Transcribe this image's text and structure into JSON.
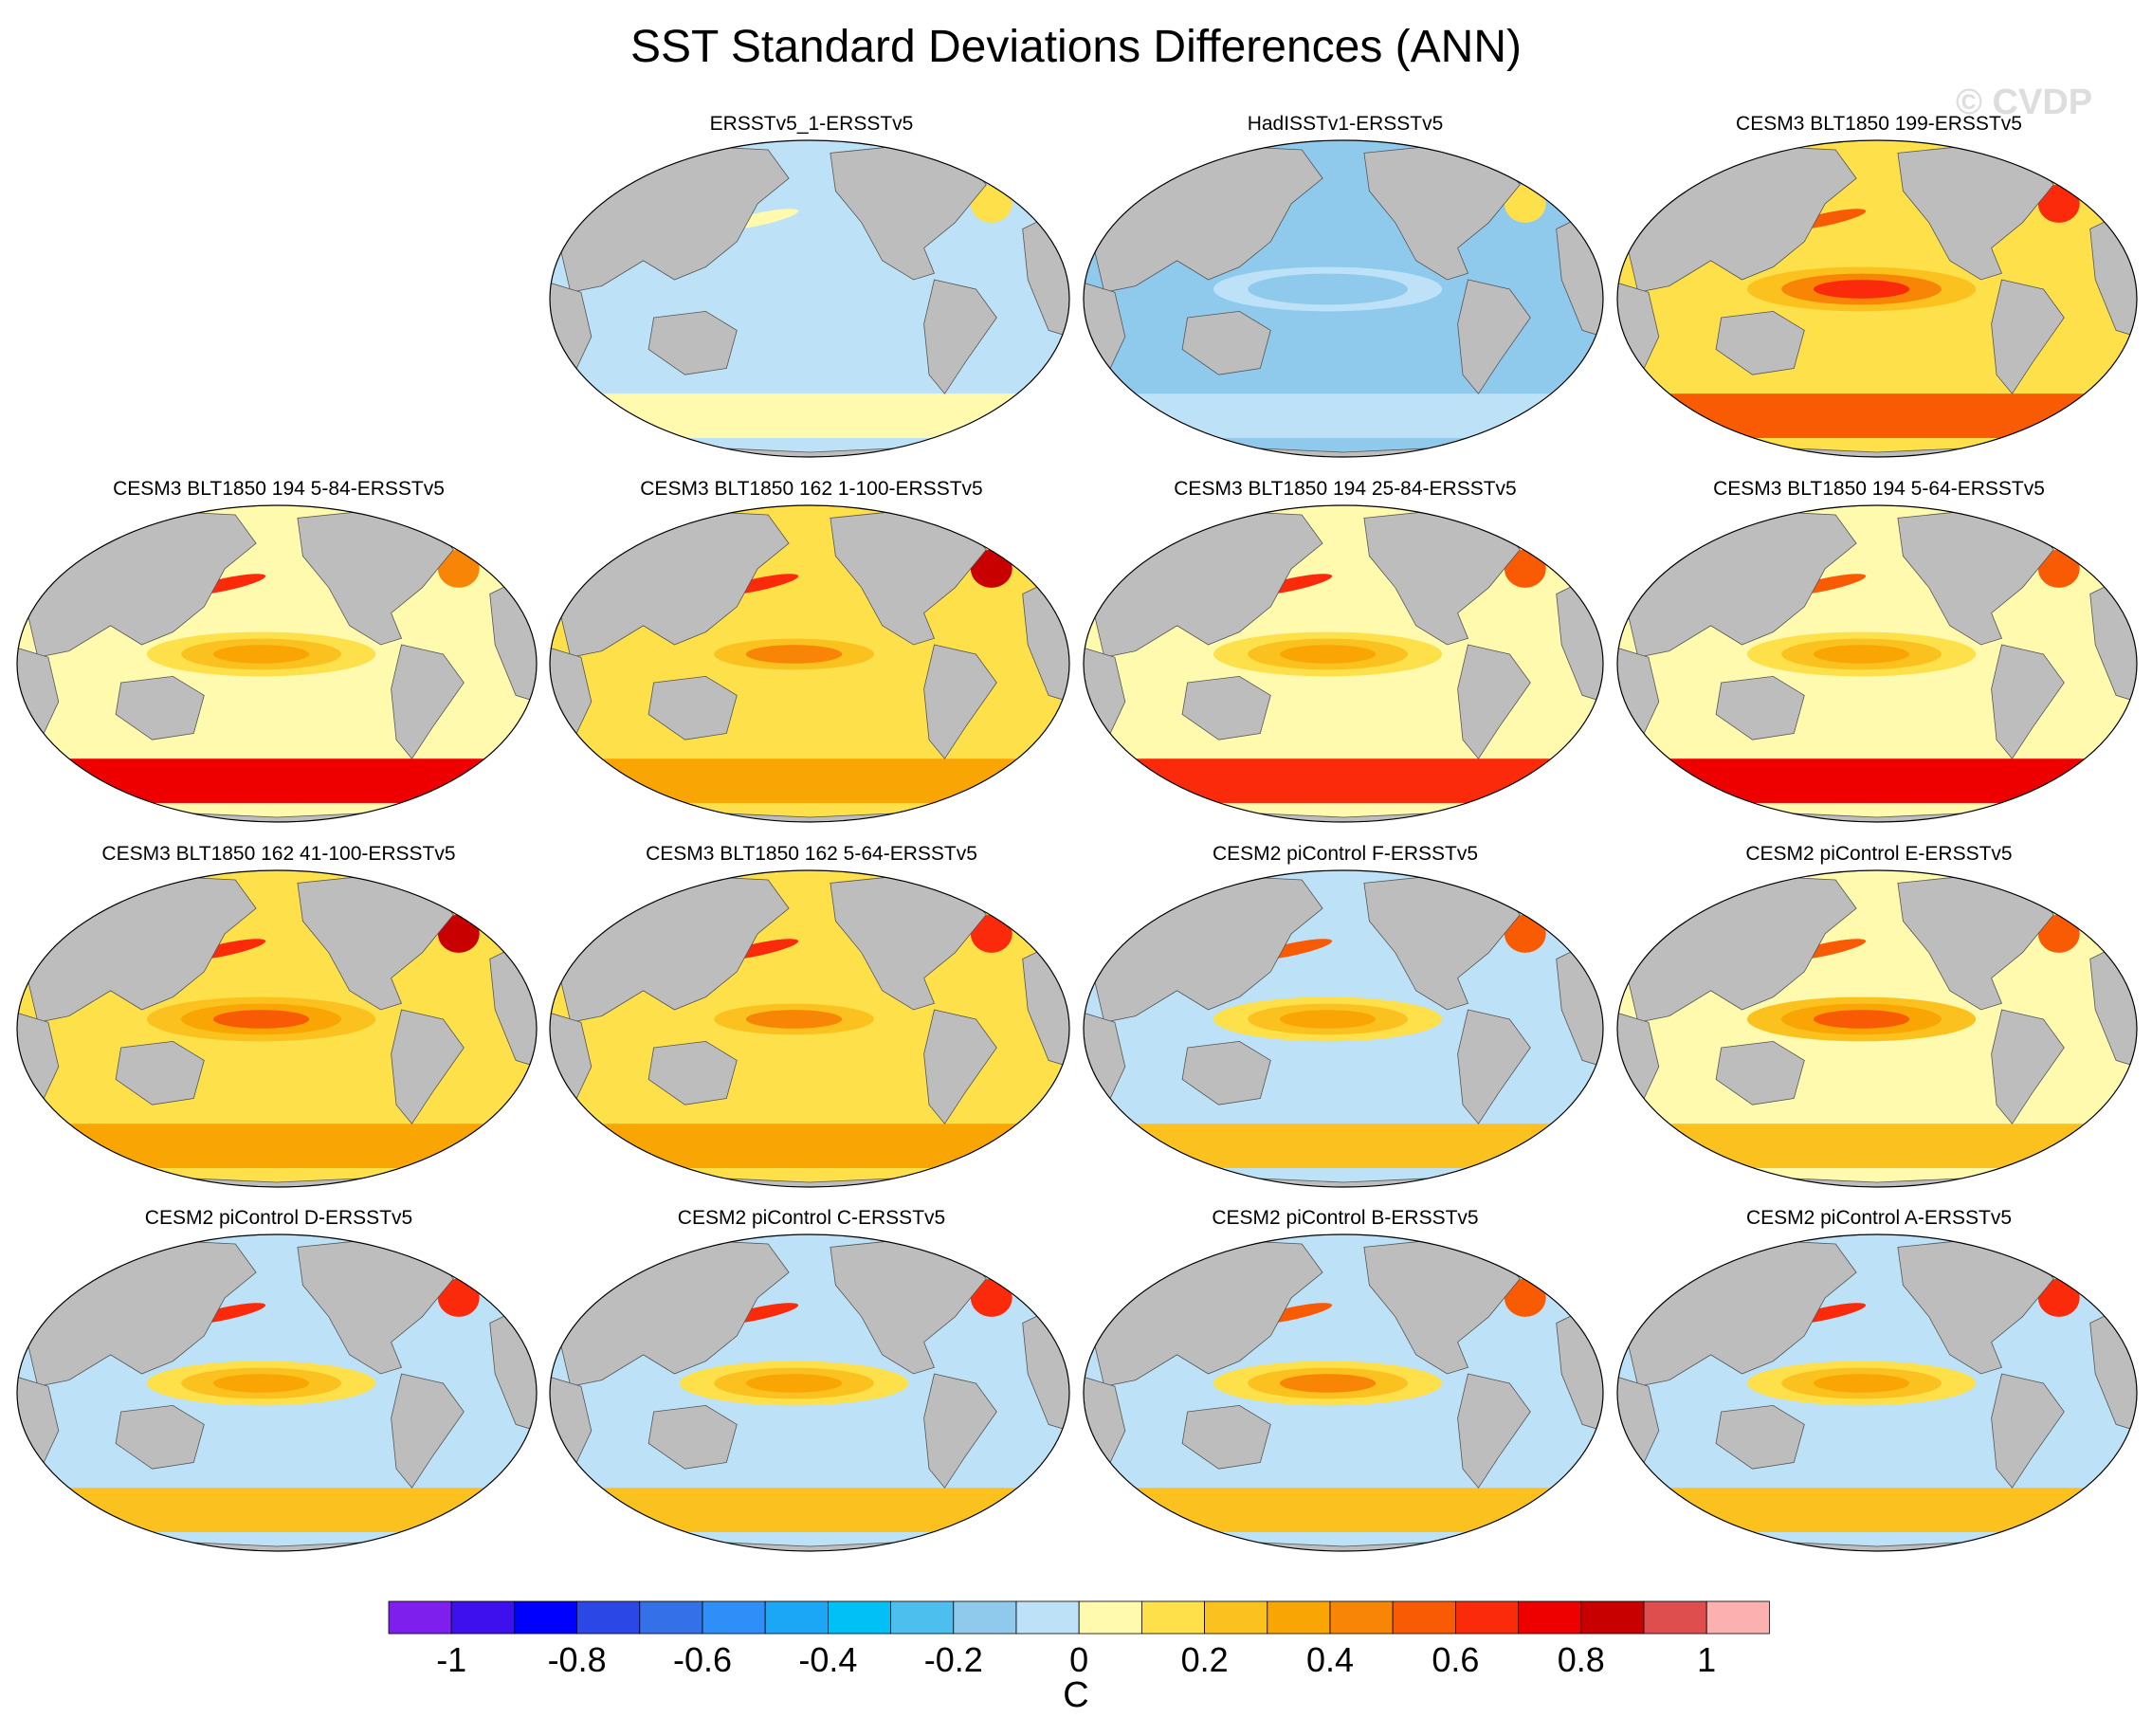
{
  "title": "SST Standard Deviations Differences (ANN)",
  "watermark": "© CVDP",
  "colors": {
    "land": "#bdbdbd",
    "levels": [
      "#7f1fee",
      "#3e10ee",
      "#0000ff",
      "#2b48e6",
      "#3470e8",
      "#2f8ef7",
      "#1ba7f5",
      "#00c0f5",
      "#4dbfee",
      "#8fcaed",
      "#bde1f6",
      "#fffaae",
      "#fde04a",
      "#fbc21f",
      "#f9a605",
      "#f88505",
      "#f95b05",
      "#fa2a0a",
      "#ee0000",
      "#c80000",
      "#de4e4e",
      "#fcb0b0"
    ]
  },
  "chart_data": {
    "type": "map_panels",
    "projection": "robinson",
    "variable": "SST standard deviation difference",
    "season": "ANN",
    "colorbar": {
      "unit": "C",
      "tick_labels": [
        "-1",
        "-0.8",
        "-0.6",
        "-0.4",
        "-0.2",
        "0",
        "0.2",
        "0.4",
        "0.6",
        "0.8",
        "1"
      ],
      "tick_values": [
        -1,
        -0.8,
        -0.6,
        -0.4,
        -0.2,
        0,
        0.2,
        0.4,
        0.6,
        0.8,
        1
      ],
      "contour_interval": 0.1,
      "range": [
        -1.1,
        1.1
      ]
    },
    "panels": [
      {
        "title": "ERSSTv5_1-ERSSTv5",
        "row": 0,
        "col": 1,
        "tropical_pacific_anomaly": -0.05,
        "southern_ocean_anomaly": 0.05,
        "north_pacific_anomaly": 0.0,
        "north_atlantic_anomaly": 0.1,
        "background": -0.1
      },
      {
        "title": "HadISSTv1-ERSSTv5",
        "row": 0,
        "col": 2,
        "tropical_pacific_anomaly": -0.15,
        "southern_ocean_anomaly": -0.1,
        "north_pacific_anomaly": -0.15,
        "north_atlantic_anomaly": 0.1,
        "background": -0.15
      },
      {
        "title": "CESM3 BLT1850 199-ERSSTv5",
        "row": 0,
        "col": 3,
        "tropical_pacific_anomaly": 0.6,
        "southern_ocean_anomaly": 0.5,
        "north_pacific_anomaly": 0.5,
        "north_atlantic_anomaly": 0.6,
        "background": 0.15
      },
      {
        "title": "CESM3 BLT1850 194 5-84-ERSSTv5",
        "row": 1,
        "col": 0,
        "tropical_pacific_anomaly": 0.3,
        "southern_ocean_anomaly": 0.7,
        "north_pacific_anomaly": 0.6,
        "north_atlantic_anomaly": 0.4,
        "background": 0.05
      },
      {
        "title": "CESM3 BLT1850 162 1-100-ERSSTv5",
        "row": 1,
        "col": 1,
        "tropical_pacific_anomaly": 0.4,
        "southern_ocean_anomaly": 0.3,
        "north_pacific_anomaly": 0.6,
        "north_atlantic_anomaly": 0.8,
        "background": 0.1
      },
      {
        "title": "CESM3 BLT1850 194 25-84-ERSSTv5",
        "row": 1,
        "col": 2,
        "tropical_pacific_anomaly": 0.3,
        "southern_ocean_anomaly": 0.6,
        "north_pacific_anomaly": 0.6,
        "north_atlantic_anomaly": 0.5,
        "background": 0.05
      },
      {
        "title": "CESM3 BLT1850 194 5-64-ERSSTv5",
        "row": 1,
        "col": 3,
        "tropical_pacific_anomaly": 0.3,
        "southern_ocean_anomaly": 0.7,
        "north_pacific_anomaly": 0.5,
        "north_atlantic_anomaly": 0.5,
        "background": 0.05
      },
      {
        "title": "CESM3 BLT1850 162 41-100-ERSSTv5",
        "row": 2,
        "col": 0,
        "tropical_pacific_anomaly": 0.5,
        "southern_ocean_anomaly": 0.3,
        "north_pacific_anomaly": 0.6,
        "north_atlantic_anomaly": 0.8,
        "background": 0.15
      },
      {
        "title": "CESM3 BLT1850 162 5-64-ERSSTv5",
        "row": 2,
        "col": 1,
        "tropical_pacific_anomaly": 0.4,
        "southern_ocean_anomaly": 0.3,
        "north_pacific_anomaly": 0.6,
        "north_atlantic_anomaly": 0.6,
        "background": 0.1
      },
      {
        "title": "CESM2 piControl F-ERSSTv5",
        "row": 2,
        "col": 2,
        "tropical_pacific_anomaly": 0.3,
        "southern_ocean_anomaly": 0.2,
        "north_pacific_anomaly": 0.5,
        "north_atlantic_anomaly": 0.5,
        "background": -0.05
      },
      {
        "title": "CESM2 piControl E-ERSSTv5",
        "row": 2,
        "col": 3,
        "tropical_pacific_anomaly": 0.5,
        "southern_ocean_anomaly": 0.2,
        "north_pacific_anomaly": 0.5,
        "north_atlantic_anomaly": 0.5,
        "background": 0.0
      },
      {
        "title": "CESM2 piControl D-ERSSTv5",
        "row": 3,
        "col": 0,
        "tropical_pacific_anomaly": 0.3,
        "southern_ocean_anomaly": 0.2,
        "north_pacific_anomaly": 0.6,
        "north_atlantic_anomaly": 0.6,
        "background": -0.05
      },
      {
        "title": "CESM2 piControl C-ERSSTv5",
        "row": 3,
        "col": 1,
        "tropical_pacific_anomaly": 0.3,
        "southern_ocean_anomaly": 0.2,
        "north_pacific_anomaly": 0.6,
        "north_atlantic_anomaly": 0.6,
        "background": -0.1
      },
      {
        "title": "CESM2 piControl B-ERSSTv5",
        "row": 3,
        "col": 2,
        "tropical_pacific_anomaly": 0.4,
        "southern_ocean_anomaly": 0.2,
        "north_pacific_anomaly": 0.5,
        "north_atlantic_anomaly": 0.5,
        "background": -0.05
      },
      {
        "title": "CESM2 piControl A-ERSSTv5",
        "row": 3,
        "col": 3,
        "tropical_pacific_anomaly": 0.3,
        "southern_ocean_anomaly": 0.2,
        "north_pacific_anomaly": 0.6,
        "north_atlantic_anomaly": 0.6,
        "background": -0.05
      }
    ]
  }
}
